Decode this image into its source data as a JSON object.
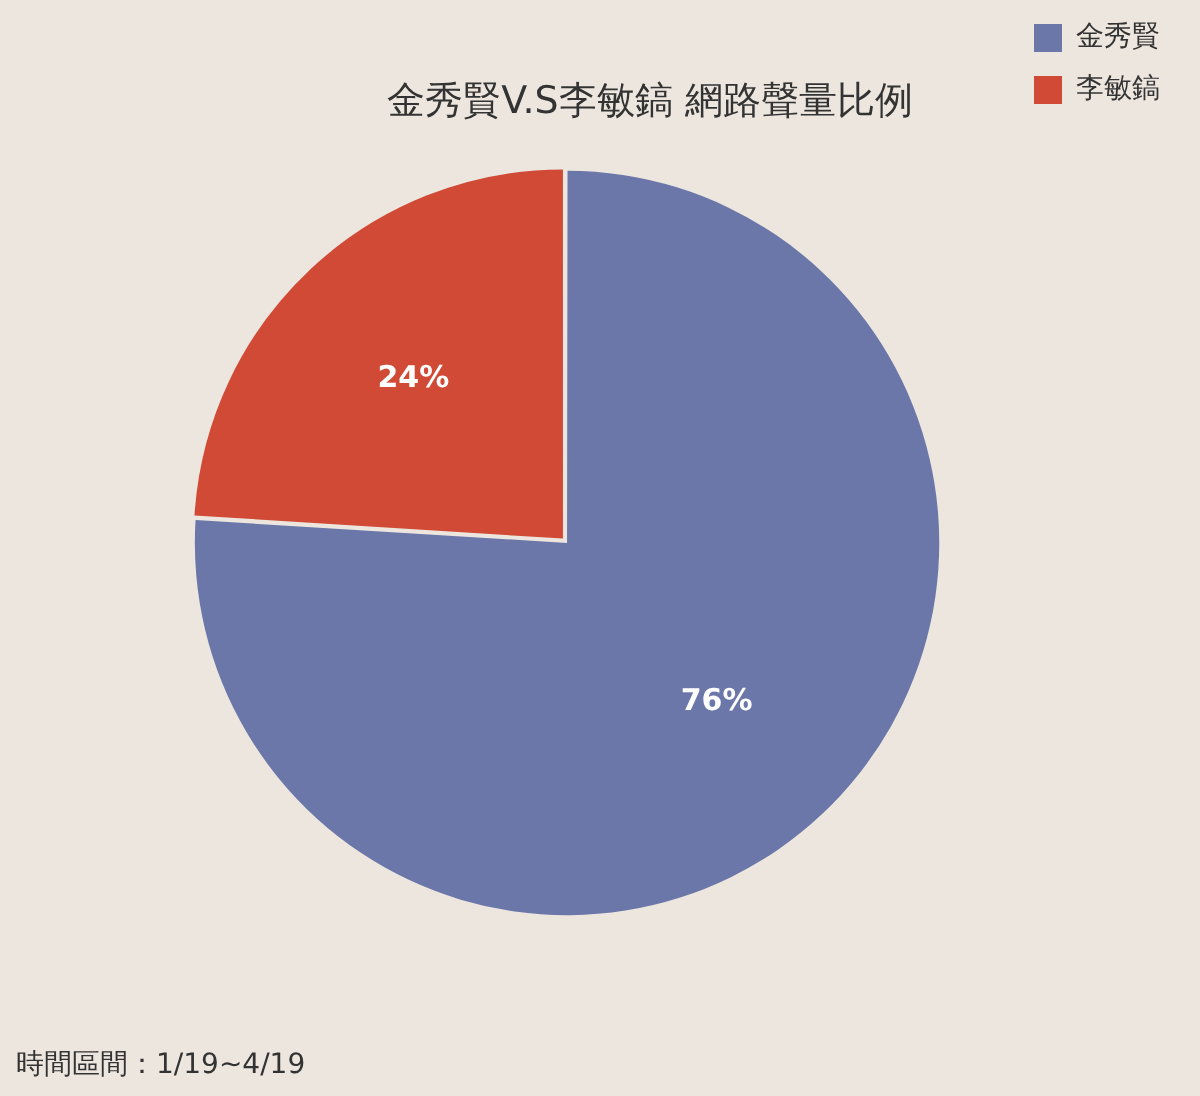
{
  "chart_data": {
    "type": "pie",
    "title": "金秀賢V.S李敏鎬 網路聲量比例",
    "categories": [
      "金秀賢",
      "李敏鎬"
    ],
    "values": [
      76,
      24
    ],
    "colors": [
      "#6a77a8",
      "#d04a36"
    ],
    "value_labels": [
      "76%",
      "24%"
    ],
    "legend": "top right",
    "annotations": [
      "時間區間：1/19~4/19"
    ]
  }
}
